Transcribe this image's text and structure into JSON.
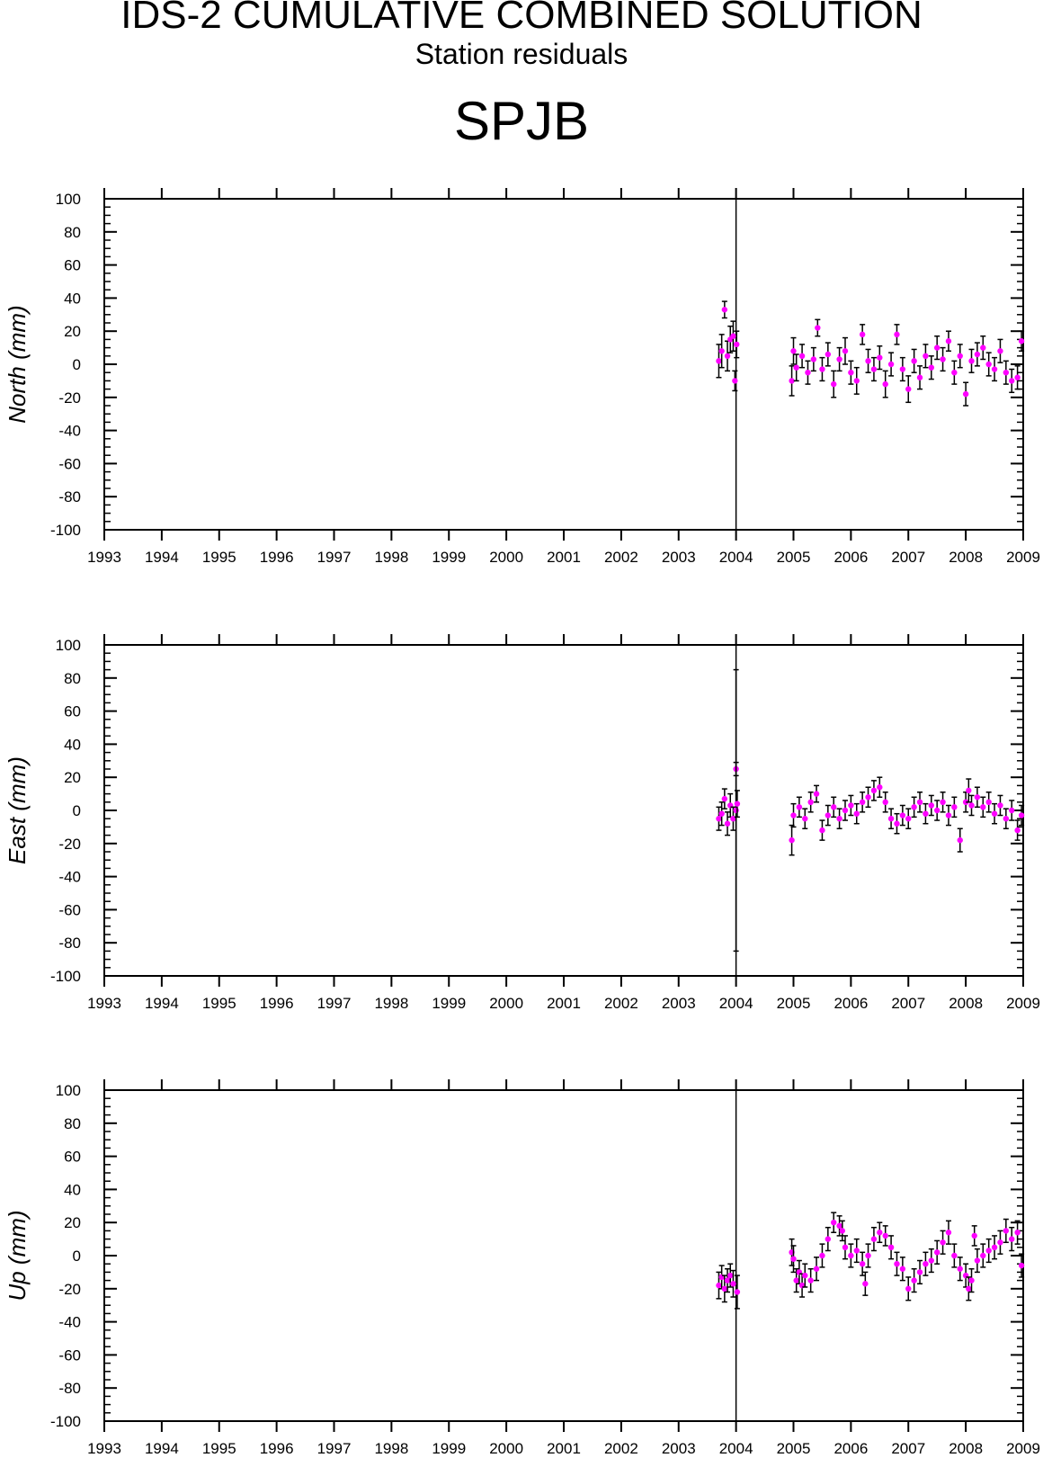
{
  "header": {
    "title": "IDS-2 CUMULATIVE COMBINED SOLUTION",
    "subtitle": "Station residuals",
    "station": "SPJB"
  },
  "colors": {
    "points": "#ff00ff",
    "errorbars": "#000000",
    "axes": "#000000"
  },
  "chart_data": [
    {
      "type": "scatter",
      "ylabel": "North (mm)",
      "xlim": [
        1993,
        2009
      ],
      "ylim": [
        -100,
        100
      ],
      "xticks": [
        "1993",
        "1994",
        "1995",
        "1996",
        "1997",
        "1998",
        "1999",
        "2000",
        "2001",
        "2002",
        "2003",
        "2004",
        "2005",
        "2006",
        "2007",
        "2008",
        "2009"
      ],
      "yticks": [
        "100",
        "80",
        "60",
        "40",
        "20",
        "0",
        "-20",
        "-40",
        "-60",
        "-80",
        "-100"
      ],
      "vline": 2004.0,
      "series": [
        {
          "points": [
            {
              "x": 2003.7,
              "y": 2,
              "err": 10
            },
            {
              "x": 2003.75,
              "y": 8,
              "err": 10
            },
            {
              "x": 2003.8,
              "y": 33,
              "err": 5
            },
            {
              "x": 2003.85,
              "y": 5,
              "err": 9
            },
            {
              "x": 2003.9,
              "y": 15,
              "err": 8
            },
            {
              "x": 2003.95,
              "y": 17,
              "err": 9
            },
            {
              "x": 2003.98,
              "y": -10,
              "err": 6
            },
            {
              "x": 2004.01,
              "y": 12,
              "err": 8
            },
            {
              "x": 2004.97,
              "y": -10,
              "err": 9
            },
            {
              "x": 2005.0,
              "y": 8,
              "err": 8
            },
            {
              "x": 2005.05,
              "y": -2,
              "err": 8
            },
            {
              "x": 2005.15,
              "y": 5,
              "err": 7
            },
            {
              "x": 2005.25,
              "y": -5,
              "err": 7
            },
            {
              "x": 2005.35,
              "y": 3,
              "err": 7
            },
            {
              "x": 2005.42,
              "y": 22,
              "err": 5
            },
            {
              "x": 2005.5,
              "y": -3,
              "err": 7
            },
            {
              "x": 2005.6,
              "y": 6,
              "err": 7
            },
            {
              "x": 2005.7,
              "y": -12,
              "err": 8
            },
            {
              "x": 2005.8,
              "y": 3,
              "err": 7
            },
            {
              "x": 2005.9,
              "y": 8,
              "err": 8
            },
            {
              "x": 2006.0,
              "y": -5,
              "err": 7
            },
            {
              "x": 2006.1,
              "y": -10,
              "err": 8
            },
            {
              "x": 2006.2,
              "y": 18,
              "err": 6
            },
            {
              "x": 2006.3,
              "y": 2,
              "err": 7
            },
            {
              "x": 2006.4,
              "y": -3,
              "err": 7
            },
            {
              "x": 2006.5,
              "y": 4,
              "err": 7
            },
            {
              "x": 2006.6,
              "y": -12,
              "err": 8
            },
            {
              "x": 2006.7,
              "y": 0,
              "err": 7
            },
            {
              "x": 2006.8,
              "y": 18,
              "err": 6
            },
            {
              "x": 2006.9,
              "y": -3,
              "err": 7
            },
            {
              "x": 2007.0,
              "y": -15,
              "err": 8
            },
            {
              "x": 2007.1,
              "y": 2,
              "err": 7
            },
            {
              "x": 2007.2,
              "y": -8,
              "err": 7
            },
            {
              "x": 2007.3,
              "y": 5,
              "err": 7
            },
            {
              "x": 2007.4,
              "y": -2,
              "err": 7
            },
            {
              "x": 2007.5,
              "y": 10,
              "err": 7
            },
            {
              "x": 2007.6,
              "y": 3,
              "err": 7
            },
            {
              "x": 2007.7,
              "y": 14,
              "err": 6
            },
            {
              "x": 2007.8,
              "y": -5,
              "err": 7
            },
            {
              "x": 2007.9,
              "y": 5,
              "err": 7
            },
            {
              "x": 2008.0,
              "y": -18,
              "err": 7
            },
            {
              "x": 2008.1,
              "y": 2,
              "err": 7
            },
            {
              "x": 2008.2,
              "y": 6,
              "err": 7
            },
            {
              "x": 2008.3,
              "y": 10,
              "err": 7
            },
            {
              "x": 2008.4,
              "y": 0,
              "err": 7
            },
            {
              "x": 2008.5,
              "y": -3,
              "err": 7
            },
            {
              "x": 2008.6,
              "y": 8,
              "err": 7
            },
            {
              "x": 2008.7,
              "y": -5,
              "err": 7
            },
            {
              "x": 2008.8,
              "y": -10,
              "err": 7
            },
            {
              "x": 2008.9,
              "y": -8,
              "err": 7
            },
            {
              "x": 2008.97,
              "y": 14,
              "err": 6
            }
          ]
        }
      ]
    },
    {
      "type": "scatter",
      "ylabel": "East (mm)",
      "xlim": [
        1993,
        2009
      ],
      "ylim": [
        -100,
        100
      ],
      "xticks": [
        "1993",
        "1994",
        "1995",
        "1996",
        "1997",
        "1998",
        "1999",
        "2000",
        "2001",
        "2002",
        "2003",
        "2004",
        "2005",
        "2006",
        "2007",
        "2008",
        "2009"
      ],
      "yticks": [
        "100",
        "80",
        "60",
        "40",
        "20",
        "0",
        "-20",
        "-40",
        "-60",
        "-80",
        "-100"
      ],
      "vline": 2004.0,
      "series": [
        {
          "points": [
            {
              "x": 2003.7,
              "y": -5,
              "err": 7
            },
            {
              "x": 2003.75,
              "y": -2,
              "err": 7
            },
            {
              "x": 2003.8,
              "y": 7,
              "err": 6
            },
            {
              "x": 2003.85,
              "y": -8,
              "err": 7
            },
            {
              "x": 2003.9,
              "y": 3,
              "err": 7
            },
            {
              "x": 2003.95,
              "y": -5,
              "err": 7
            },
            {
              "x": 2004.0,
              "y": 25,
              "err": 4
            },
            {
              "x": 2004.0,
              "y": 0,
              "err": 85
            },
            {
              "x": 2004.02,
              "y": 4,
              "err": 8
            },
            {
              "x": 2004.97,
              "y": -18,
              "err": 9
            },
            {
              "x": 2005.0,
              "y": -3,
              "err": 7
            },
            {
              "x": 2005.1,
              "y": 2,
              "err": 6
            },
            {
              "x": 2005.2,
              "y": -5,
              "err": 6
            },
            {
              "x": 2005.3,
              "y": 5,
              "err": 6
            },
            {
              "x": 2005.4,
              "y": 10,
              "err": 5
            },
            {
              "x": 2005.5,
              "y": -12,
              "err": 6
            },
            {
              "x": 2005.6,
              "y": -3,
              "err": 6
            },
            {
              "x": 2005.7,
              "y": 2,
              "err": 6
            },
            {
              "x": 2005.8,
              "y": -5,
              "err": 6
            },
            {
              "x": 2005.9,
              "y": 0,
              "err": 6
            },
            {
              "x": 2006.0,
              "y": 3,
              "err": 6
            },
            {
              "x": 2006.1,
              "y": -2,
              "err": 6
            },
            {
              "x": 2006.2,
              "y": 5,
              "err": 6
            },
            {
              "x": 2006.3,
              "y": 8,
              "err": 6
            },
            {
              "x": 2006.4,
              "y": 12,
              "err": 6
            },
            {
              "x": 2006.5,
              "y": 14,
              "err": 6
            },
            {
              "x": 2006.6,
              "y": 5,
              "err": 6
            },
            {
              "x": 2006.7,
              "y": -5,
              "err": 6
            },
            {
              "x": 2006.8,
              "y": -8,
              "err": 6
            },
            {
              "x": 2006.9,
              "y": -3,
              "err": 6
            },
            {
              "x": 2007.0,
              "y": -5,
              "err": 6
            },
            {
              "x": 2007.1,
              "y": 2,
              "err": 6
            },
            {
              "x": 2007.2,
              "y": 5,
              "err": 6
            },
            {
              "x": 2007.3,
              "y": -2,
              "err": 6
            },
            {
              "x": 2007.4,
              "y": 3,
              "err": 6
            },
            {
              "x": 2007.5,
              "y": 0,
              "err": 6
            },
            {
              "x": 2007.6,
              "y": 5,
              "err": 6
            },
            {
              "x": 2007.7,
              "y": -3,
              "err": 6
            },
            {
              "x": 2007.8,
              "y": 2,
              "err": 6
            },
            {
              "x": 2007.9,
              "y": -18,
              "err": 7
            },
            {
              "x": 2008.0,
              "y": 5,
              "err": 6
            },
            {
              "x": 2008.05,
              "y": 12,
              "err": 7
            },
            {
              "x": 2008.1,
              "y": 3,
              "err": 6
            },
            {
              "x": 2008.2,
              "y": 8,
              "err": 6
            },
            {
              "x": 2008.3,
              "y": 2,
              "err": 6
            },
            {
              "x": 2008.4,
              "y": 5,
              "err": 6
            },
            {
              "x": 2008.5,
              "y": -2,
              "err": 6
            },
            {
              "x": 2008.6,
              "y": 3,
              "err": 6
            },
            {
              "x": 2008.7,
              "y": -5,
              "err": 6
            },
            {
              "x": 2008.8,
              "y": 0,
              "err": 6
            },
            {
              "x": 2008.9,
              "y": -12,
              "err": 6
            },
            {
              "x": 2008.97,
              "y": -3,
              "err": 6
            }
          ]
        }
      ]
    },
    {
      "type": "scatter",
      "ylabel": "Up (mm)",
      "xlim": [
        1993,
        2009
      ],
      "ylim": [
        -100,
        100
      ],
      "xticks": [
        "1993",
        "1994",
        "1995",
        "1996",
        "1997",
        "1998",
        "1999",
        "2000",
        "2001",
        "2002",
        "2003",
        "2004",
        "2005",
        "2006",
        "2007",
        "2008",
        "2009"
      ],
      "yticks": [
        "100",
        "80",
        "60",
        "40",
        "20",
        "0",
        "-20",
        "-40",
        "-60",
        "-80",
        "-100"
      ],
      "vline": 2004.0,
      "series": [
        {
          "points": [
            {
              "x": 2003.7,
              "y": -18,
              "err": 8
            },
            {
              "x": 2003.75,
              "y": -13,
              "err": 7
            },
            {
              "x": 2003.8,
              "y": -20,
              "err": 8
            },
            {
              "x": 2003.85,
              "y": -15,
              "err": 7
            },
            {
              "x": 2003.9,
              "y": -12,
              "err": 7
            },
            {
              "x": 2003.95,
              "y": -17,
              "err": 8
            },
            {
              "x": 2004.02,
              "y": -22,
              "err": 10
            },
            {
              "x": 2004.97,
              "y": 2,
              "err": 8
            },
            {
              "x": 2005.0,
              "y": -2,
              "err": 8
            },
            {
              "x": 2005.05,
              "y": -15,
              "err": 7
            },
            {
              "x": 2005.1,
              "y": -10,
              "err": 7
            },
            {
              "x": 2005.15,
              "y": -18,
              "err": 7
            },
            {
              "x": 2005.2,
              "y": -12,
              "err": 7
            },
            {
              "x": 2005.3,
              "y": -15,
              "err": 7
            },
            {
              "x": 2005.4,
              "y": -8,
              "err": 7
            },
            {
              "x": 2005.5,
              "y": 0,
              "err": 7
            },
            {
              "x": 2005.6,
              "y": 10,
              "err": 7
            },
            {
              "x": 2005.7,
              "y": 20,
              "err": 6
            },
            {
              "x": 2005.8,
              "y": 18,
              "err": 6
            },
            {
              "x": 2005.85,
              "y": 15,
              "err": 6
            },
            {
              "x": 2005.9,
              "y": 5,
              "err": 7
            },
            {
              "x": 2006.0,
              "y": 0,
              "err": 7
            },
            {
              "x": 2006.1,
              "y": 3,
              "err": 7
            },
            {
              "x": 2006.2,
              "y": -5,
              "err": 7
            },
            {
              "x": 2006.25,
              "y": -17,
              "err": 7
            },
            {
              "x": 2006.3,
              "y": 0,
              "err": 7
            },
            {
              "x": 2006.4,
              "y": 10,
              "err": 7
            },
            {
              "x": 2006.5,
              "y": 14,
              "err": 6
            },
            {
              "x": 2006.6,
              "y": 12,
              "err": 6
            },
            {
              "x": 2006.7,
              "y": 5,
              "err": 7
            },
            {
              "x": 2006.8,
              "y": -5,
              "err": 7
            },
            {
              "x": 2006.9,
              "y": -8,
              "err": 7
            },
            {
              "x": 2007.0,
              "y": -20,
              "err": 7
            },
            {
              "x": 2007.1,
              "y": -15,
              "err": 7
            },
            {
              "x": 2007.2,
              "y": -10,
              "err": 7
            },
            {
              "x": 2007.3,
              "y": -5,
              "err": 7
            },
            {
              "x": 2007.4,
              "y": -3,
              "err": 7
            },
            {
              "x": 2007.5,
              "y": 2,
              "err": 7
            },
            {
              "x": 2007.6,
              "y": 8,
              "err": 7
            },
            {
              "x": 2007.7,
              "y": 14,
              "err": 7
            },
            {
              "x": 2007.8,
              "y": 0,
              "err": 7
            },
            {
              "x": 2007.9,
              "y": -8,
              "err": 7
            },
            {
              "x": 2008.0,
              "y": -12,
              "err": 7
            },
            {
              "x": 2008.05,
              "y": -20,
              "err": 7
            },
            {
              "x": 2008.1,
              "y": -15,
              "err": 7
            },
            {
              "x": 2008.15,
              "y": 12,
              "err": 6
            },
            {
              "x": 2008.2,
              "y": -3,
              "err": 7
            },
            {
              "x": 2008.3,
              "y": 0,
              "err": 7
            },
            {
              "x": 2008.4,
              "y": 3,
              "err": 7
            },
            {
              "x": 2008.5,
              "y": 5,
              "err": 7
            },
            {
              "x": 2008.6,
              "y": 8,
              "err": 7
            },
            {
              "x": 2008.7,
              "y": 15,
              "err": 7
            },
            {
              "x": 2008.8,
              "y": 10,
              "err": 7
            },
            {
              "x": 2008.9,
              "y": 14,
              "err": 7
            },
            {
              "x": 2008.97,
              "y": -6,
              "err": 7
            }
          ]
        }
      ]
    }
  ]
}
